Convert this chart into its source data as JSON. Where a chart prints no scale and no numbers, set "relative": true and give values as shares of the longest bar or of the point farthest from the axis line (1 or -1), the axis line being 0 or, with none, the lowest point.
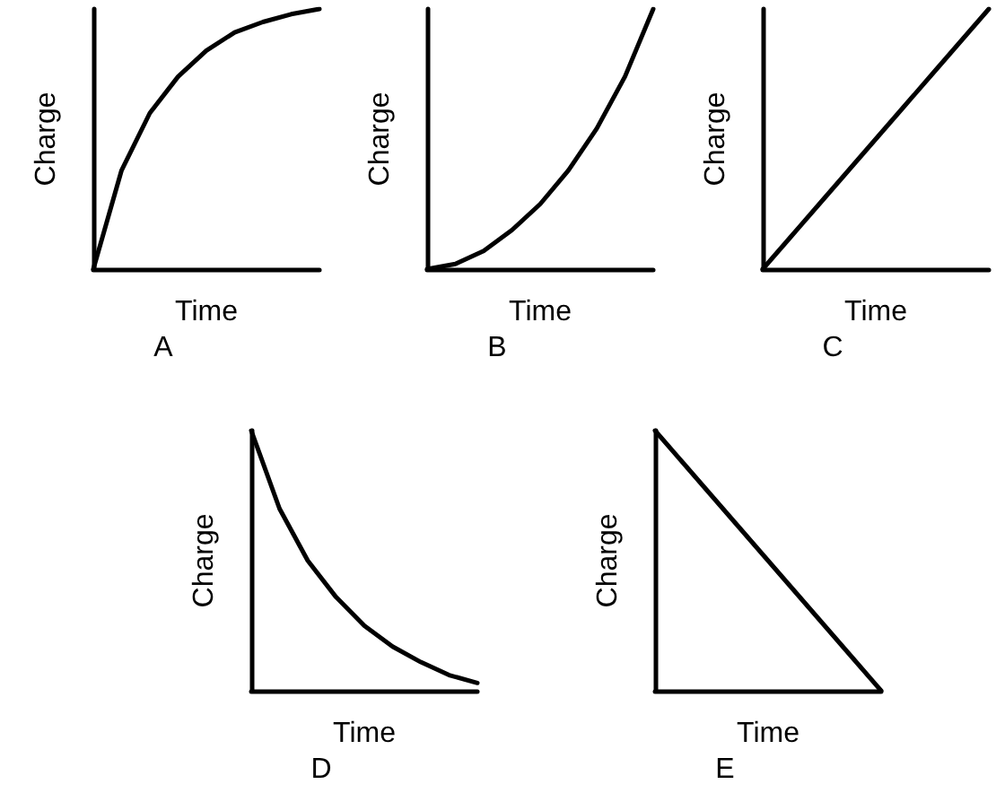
{
  "chart_data": [
    {
      "type": "line",
      "relative": true,
      "xlabel": "Time",
      "ylabel": "Charge",
      "annotations": [
        "A"
      ],
      "categories": [
        null,
        null,
        null,
        null,
        null,
        null,
        null,
        null,
        null
      ],
      "series": [
        {
          "color": "#000000",
          "values": [
            0,
            0.38,
            0.6,
            0.74,
            0.84,
            0.91,
            0.95,
            0.98,
            1
          ]
        }
      ],
      "marker": "none",
      "line_style": "solid",
      "grid": false
    },
    {
      "type": "line",
      "relative": true,
      "xlabel": "Time",
      "ylabel": "Charge",
      "annotations": [
        "B"
      ],
      "categories": [
        null,
        null,
        null,
        null,
        null,
        null,
        null,
        null,
        null
      ],
      "series": [
        {
          "color": "#000000",
          "values": [
            0,
            0.02,
            0.07,
            0.15,
            0.25,
            0.38,
            0.54,
            0.74,
            1
          ]
        }
      ],
      "marker": "none",
      "line_style": "solid",
      "grid": false
    },
    {
      "type": "line",
      "relative": true,
      "xlabel": "Time",
      "ylabel": "Charge",
      "annotations": [
        "C"
      ],
      "categories": [
        null,
        null,
        null,
        null,
        null,
        null,
        null,
        null,
        null
      ],
      "series": [
        {
          "color": "#000000",
          "values": [
            0,
            0.125,
            0.25,
            0.375,
            0.5,
            0.625,
            0.75,
            0.875,
            1
          ]
        }
      ],
      "marker": "none",
      "line_style": "solid",
      "grid": false
    },
    {
      "type": "line",
      "relative": true,
      "xlabel": "Time",
      "ylabel": "Charge",
      "annotations": [
        "D"
      ],
      "categories": [
        null,
        null,
        null,
        null,
        null,
        null,
        null,
        null,
        null
      ],
      "series": [
        {
          "color": "#000000",
          "values": [
            1,
            0.7,
            0.5,
            0.36,
            0.25,
            0.17,
            0.11,
            0.06,
            0.03
          ]
        }
      ],
      "marker": "none",
      "line_style": "solid",
      "grid": false
    },
    {
      "type": "line",
      "relative": true,
      "xlabel": "Time",
      "ylabel": "Charge",
      "annotations": [
        "E"
      ],
      "categories": [
        null,
        null,
        null,
        null,
        null,
        null,
        null,
        null,
        null
      ],
      "series": [
        {
          "color": "#000000",
          "values": [
            1,
            0.875,
            0.75,
            0.625,
            0.5,
            0.375,
            0.25,
            0.125,
            0
          ]
        }
      ],
      "marker": "none",
      "line_style": "solid",
      "grid": false
    }
  ]
}
